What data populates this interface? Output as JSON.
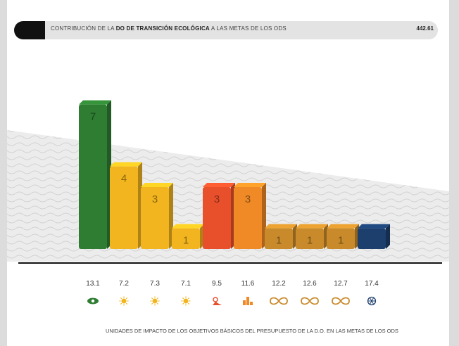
{
  "header": {
    "title_prefix": "CONTRIBUCIÓN DE LA ",
    "title_bold": "DO DE TRANSICIÓN ECOLÓGICA",
    "title_suffix": " A LAS METAS DE LOS ODS",
    "value": "442.61"
  },
  "footnote": "UNIDADES DE IMPACTO DE LOS OBJETIVOS BÁSICOS DEL PRESUPUESTO DE LA D.O. EN LAS METAS DE LOS ODS",
  "chart_data": {
    "type": "bar",
    "categories": [
      "13.1",
      "7.2",
      "7.3",
      "7.1",
      "9.5",
      "11.6",
      "12.2",
      "12.6",
      "12.7",
      "17.4"
    ],
    "values": [
      7,
      4,
      3,
      1,
      3,
      3,
      1,
      1,
      1,
      1
    ],
    "data_labels": [
      "7",
      "4",
      "3",
      "1",
      "3",
      "3",
      "1",
      "1",
      "1",
      ""
    ],
    "colors": [
      "#2e7d32",
      "#f2b51f",
      "#f2b51f",
      "#f2b51f",
      "#e8502b",
      "#f08a26",
      "#c88a2a",
      "#c88a2a",
      "#c88a2a",
      "#1d3f6e"
    ],
    "icons": [
      "eye-icon",
      "sun-icon",
      "sun-icon",
      "sun-icon",
      "factory-icon",
      "city-icon",
      "infinity-icon",
      "infinity-icon",
      "infinity-icon",
      "wheel-icon"
    ],
    "icon_colors": [
      "#2e7d32",
      "#f2b51f",
      "#f2b51f",
      "#f2b51f",
      "#e8502b",
      "#f08a26",
      "#c88a2a",
      "#c88a2a",
      "#c88a2a",
      "#1d3f6e"
    ],
    "ylim": [
      0,
      7.5
    ],
    "grid": false
  }
}
